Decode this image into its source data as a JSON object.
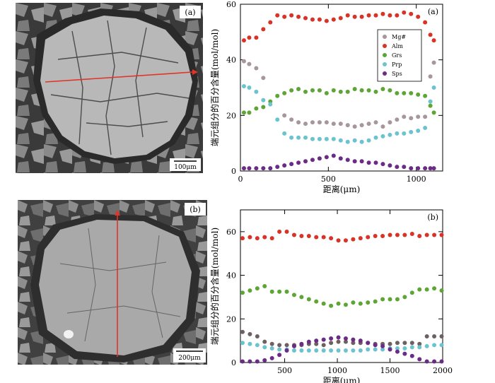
{
  "micrographs": [
    {
      "panel_label": "(a)",
      "scale_bar": "100μm",
      "traverse": "horizontal",
      "traverse_color": "#e03428"
    },
    {
      "panel_label": "(b)",
      "scale_bar": "200μm",
      "traverse": "vertical",
      "traverse_color": "#e03428"
    }
  ],
  "chart_data": [
    {
      "type": "scatter",
      "panel_label": "(a)",
      "xlabel": "距离(μm)",
      "ylabel": "端元组分的百分含量(mol/mol)",
      "xlim": [
        0,
        1150
      ],
      "ylim": [
        0,
        60
      ],
      "xticks": [
        0,
        500,
        1000
      ],
      "yticks": [
        0,
        20,
        40,
        60
      ],
      "legend_position": "top-right",
      "x": [
        20,
        50,
        90,
        130,
        170,
        210,
        250,
        290,
        330,
        370,
        410,
        450,
        490,
        530,
        570,
        610,
        650,
        690,
        730,
        770,
        810,
        850,
        890,
        930,
        970,
        1010,
        1050,
        1080,
        1100
      ],
      "series": [
        {
          "name": "Mg#",
          "color": "#a7979a",
          "values": [
            39.5,
            38.5,
            37.0,
            33.5,
            null,
            null,
            20.0,
            18.5,
            17.5,
            17.0,
            17.5,
            17.5,
            17.5,
            17.0,
            17.0,
            16.5,
            16.0,
            16.5,
            17.0,
            17.5,
            16.0,
            17.5,
            18.5,
            19.5,
            19.0,
            19.5,
            19.5,
            34.0,
            39.0
          ]
        },
        {
          "name": "Alm",
          "color": "#d93327",
          "values": [
            47.0,
            48.0,
            48.0,
            51.0,
            53.5,
            56.0,
            55.5,
            56.0,
            55.5,
            55.0,
            54.5,
            54.5,
            54.0,
            54.5,
            55.0,
            56.0,
            55.5,
            55.5,
            56.0,
            56.0,
            56.5,
            56.0,
            56.0,
            57.0,
            56.5,
            55.5,
            53.5,
            49.0,
            47.0
          ]
        },
        {
          "name": "Grs",
          "color": "#5da535",
          "values": [
            21.0,
            21.0,
            22.5,
            23.0,
            25.0,
            27.0,
            28.0,
            29.0,
            29.5,
            28.5,
            29.0,
            29.0,
            28.0,
            29.0,
            28.5,
            28.5,
            29.5,
            29.0,
            29.0,
            28.5,
            29.5,
            29.0,
            28.0,
            28.0,
            28.0,
            27.5,
            27.0,
            23.5,
            21.0
          ]
        },
        {
          "name": "Prp",
          "color": "#6cc3d0",
          "values": [
            30.5,
            30.0,
            28.5,
            25.5,
            24.0,
            18.5,
            13.5,
            12.0,
            12.0,
            12.0,
            11.5,
            11.5,
            11.5,
            11.5,
            11.0,
            10.5,
            11.0,
            10.5,
            11.0,
            12.0,
            12.5,
            13.0,
            13.5,
            13.5,
            14.0,
            14.5,
            15.5,
            25.0,
            30.0
          ]
        },
        {
          "name": "Sps",
          "color": "#6c2b86",
          "values": [
            1.0,
            1.0,
            1.0,
            1.0,
            1.0,
            1.5,
            2.0,
            2.5,
            3.0,
            3.5,
            4.0,
            4.5,
            5.0,
            5.5,
            4.5,
            4.0,
            3.5,
            3.5,
            3.0,
            3.0,
            2.5,
            2.0,
            1.5,
            1.5,
            1.0,
            1.0,
            1.0,
            1.0,
            1.0
          ]
        }
      ]
    },
    {
      "type": "scatter",
      "panel_label": "(b)",
      "xlabel": "距离(μm)",
      "ylabel": "端元组分的百分含量(mol/mol)",
      "xlim": [
        80,
        2000
      ],
      "ylim": [
        0,
        70
      ],
      "xticks": [
        500,
        1000,
        1500,
        2000
      ],
      "yticks": [
        0,
        20,
        40,
        60
      ],
      "x": [
        100,
        170,
        240,
        310,
        380,
        450,
        520,
        590,
        660,
        730,
        800,
        870,
        940,
        1010,
        1080,
        1150,
        1220,
        1290,
        1360,
        1430,
        1500,
        1570,
        1640,
        1710,
        1780,
        1850,
        1920,
        1990
      ],
      "series": [
        {
          "name": "Mg#",
          "color": "#6e6062",
          "values": [
            14.0,
            13.0,
            12.0,
            9.5,
            8.5,
            8.0,
            8.0,
            8.0,
            8.0,
            8.5,
            8.5,
            8.0,
            9.0,
            9.5,
            9.5,
            9.0,
            9.0,
            9.0,
            8.5,
            8.5,
            8.5,
            9.0,
            9.0,
            9.0,
            8.5,
            12.0,
            12.0,
            12.0
          ]
        },
        {
          "name": "Alm",
          "color": "#d93327",
          "values": [
            57.0,
            57.5,
            57.0,
            57.5,
            57.0,
            60.0,
            60.0,
            58.5,
            58.0,
            58.0,
            57.5,
            57.5,
            57.0,
            56.0,
            56.0,
            56.5,
            57.0,
            57.5,
            58.0,
            58.0,
            58.5,
            58.5,
            58.5,
            59.0,
            58.0,
            58.5,
            58.5,
            58.5
          ]
        },
        {
          "name": "Grs",
          "color": "#5da535",
          "values": [
            32.0,
            33.0,
            34.0,
            35.0,
            32.5,
            32.5,
            32.5,
            31.0,
            30.0,
            29.0,
            28.0,
            27.0,
            26.0,
            27.0,
            26.5,
            27.5,
            27.0,
            27.5,
            28.0,
            29.0,
            29.0,
            29.0,
            30.0,
            32.0,
            33.5,
            33.5,
            34.0,
            33.0
          ]
        },
        {
          "name": "Prp",
          "color": "#6cc3d0",
          "values": [
            9.0,
            8.5,
            8.0,
            7.0,
            6.5,
            6.0,
            6.0,
            5.5,
            5.5,
            5.5,
            5.5,
            5.5,
            5.5,
            5.5,
            5.5,
            5.5,
            5.5,
            6.0,
            6.0,
            6.0,
            6.5,
            6.5,
            6.5,
            7.0,
            7.0,
            7.5,
            8.0,
            8.0
          ]
        },
        {
          "name": "Sps",
          "color": "#6c2b86",
          "values": [
            0.5,
            0.5,
            0.5,
            1.0,
            2.0,
            3.5,
            5.5,
            7.5,
            8.5,
            9.5,
            10.0,
            10.5,
            11.0,
            11.5,
            11.0,
            10.5,
            10.0,
            9.0,
            8.0,
            7.5,
            6.0,
            5.0,
            4.0,
            3.0,
            1.5,
            0.5,
            0.5,
            0.5
          ]
        }
      ]
    }
  ]
}
